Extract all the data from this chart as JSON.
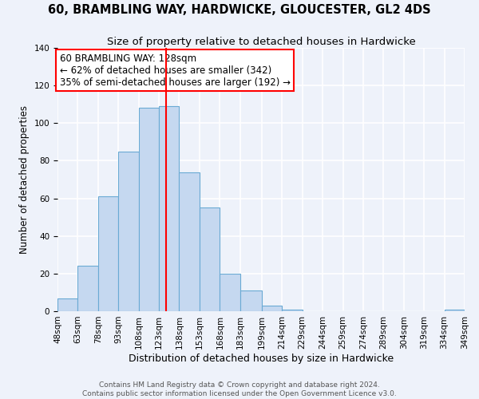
{
  "title": "60, BRAMBLING WAY, HARDWICKE, GLOUCESTER, GL2 4DS",
  "subtitle": "Size of property relative to detached houses in Hardwicke",
  "xlabel": "Distribution of detached houses by size in Hardwicke",
  "ylabel": "Number of detached properties",
  "bin_edges": [
    48,
    63,
    78,
    93,
    108,
    123,
    138,
    153,
    168,
    183,
    199,
    214,
    229,
    244,
    259,
    274,
    289,
    304,
    319,
    334,
    349
  ],
  "bin_labels": [
    "48sqm",
    "63sqm",
    "78sqm",
    "93sqm",
    "108sqm",
    "123sqm",
    "138sqm",
    "153sqm",
    "168sqm",
    "183sqm",
    "199sqm",
    "214sqm",
    "229sqm",
    "244sqm",
    "259sqm",
    "274sqm",
    "289sqm",
    "304sqm",
    "319sqm",
    "334sqm",
    "349sqm"
  ],
  "counts": [
    7,
    24,
    61,
    85,
    108,
    109,
    74,
    55,
    20,
    11,
    3,
    1,
    0,
    0,
    0,
    0,
    0,
    0,
    0,
    1
  ],
  "bar_color": "#c5d8f0",
  "bar_edge_color": "#6aaad4",
  "reference_line_x": 128,
  "reference_line_color": "red",
  "ylim": [
    0,
    140
  ],
  "annotation_text": "60 BRAMBLING WAY: 128sqm\n← 62% of detached houses are smaller (342)\n35% of semi-detached houses are larger (192) →",
  "annotation_box_color": "white",
  "annotation_box_edge_color": "red",
  "footer_line1": "Contains HM Land Registry data © Crown copyright and database right 2024.",
  "footer_line2": "Contains public sector information licensed under the Open Government Licence v3.0.",
  "background_color": "#eef2fa",
  "grid_color": "white",
  "title_fontsize": 10.5,
  "subtitle_fontsize": 9.5,
  "xlabel_fontsize": 9,
  "ylabel_fontsize": 8.5,
  "tick_fontsize": 7.5,
  "annotation_fontsize": 8.5,
  "footer_fontsize": 6.5
}
